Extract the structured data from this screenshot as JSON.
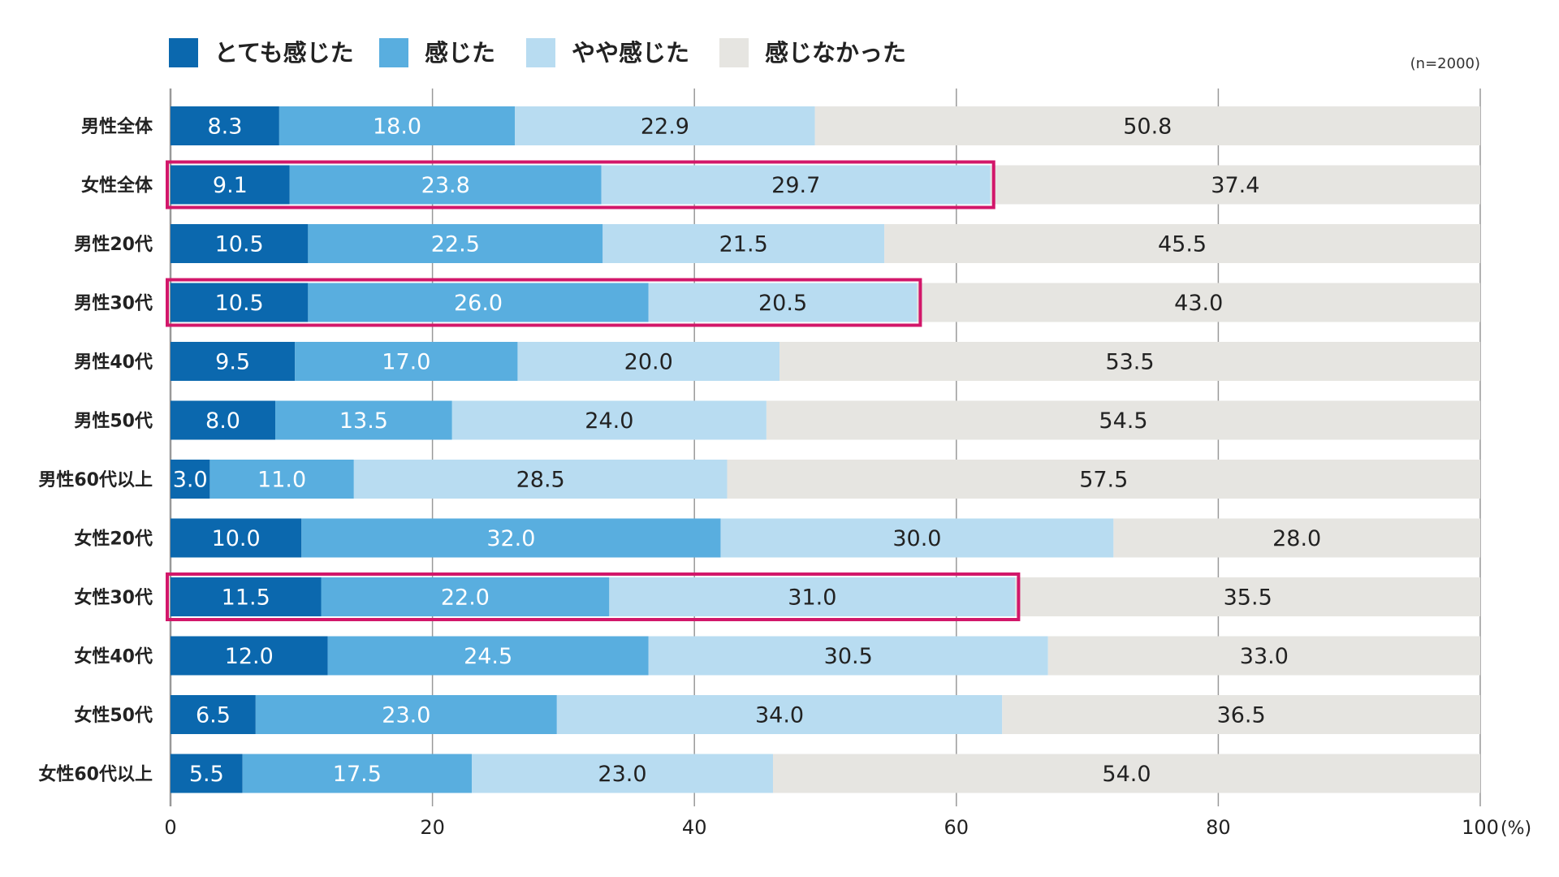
{
  "chart_data": {
    "type": "bar",
    "orientation": "horizontal",
    "stacked": true,
    "note": "(n=2000)",
    "unit": "(%)",
    "categories": [
      "男性全体",
      "女性全体",
      "男性20代",
      "男性30代",
      "男性40代",
      "男性50代",
      "男性60代以上",
      "女性20代",
      "女性30代",
      "女性40代",
      "女性50代",
      "女性60代以上"
    ],
    "series": [
      {
        "name": "とても感じた",
        "color": "#0b68ae",
        "label_color": "#ffffff",
        "values": [
          8.3,
          9.1,
          10.5,
          10.5,
          9.5,
          8.0,
          3.0,
          10.0,
          11.5,
          12.0,
          6.5,
          5.5
        ],
        "labels": [
          "8.3",
          "9.1",
          "10.5",
          "10.5",
          "9.5",
          "8.0",
          "3.0",
          "10.0",
          "11.5",
          "12.0",
          "6.5",
          "5.5"
        ]
      },
      {
        "name": "感じた",
        "color": "#59aedf",
        "label_color": "#ffffff",
        "values": [
          18.0,
          23.8,
          22.5,
          26.0,
          17.0,
          13.5,
          11.0,
          32.0,
          22.0,
          24.5,
          23.0,
          17.5
        ],
        "labels": [
          "18.0",
          "23.8",
          "22.5",
          "26.0",
          "17.0",
          "13.5",
          "11.0",
          "32.0",
          "22.0",
          "24.5",
          "23.0",
          "17.5"
        ]
      },
      {
        "name": "やや感じた",
        "color": "#b8dcf1",
        "label_color": "#222222",
        "values": [
          22.9,
          29.7,
          21.5,
          20.5,
          20.0,
          24.0,
          28.5,
          30.0,
          31.0,
          30.5,
          34.0,
          23.0
        ],
        "labels": [
          "22.9",
          "29.7",
          "21.5",
          "20.5",
          "20.0",
          "24.0",
          "28.5",
          "30.0",
          "31.0",
          "30.5",
          "34.0",
          "23.0"
        ]
      },
      {
        "name": "感じなかった",
        "color": "#e6e5e1",
        "label_color": "#222222",
        "values": [
          50.8,
          37.4,
          45.5,
          43.0,
          53.5,
          54.5,
          57.5,
          28.0,
          35.5,
          33.0,
          36.5,
          54.0
        ],
        "labels": [
          "50.8",
          "37.4",
          "45.5",
          "43.0",
          "53.5",
          "54.5",
          "57.5",
          "28.0",
          "35.5",
          "33.0",
          "36.5",
          "54.0"
        ]
      }
    ],
    "xlim": [
      0,
      100
    ],
    "xticks": [
      0,
      20,
      40,
      60,
      80,
      100
    ],
    "xtick_labels": [
      "0",
      "20",
      "40",
      "60",
      "80",
      "100"
    ],
    "grid": true,
    "legend_position": "top-left",
    "highlighted_categories": [
      "女性全体",
      "男性30代",
      "女性30代"
    ],
    "highlight_color": "#d2176a",
    "grid_color": "#999999"
  }
}
